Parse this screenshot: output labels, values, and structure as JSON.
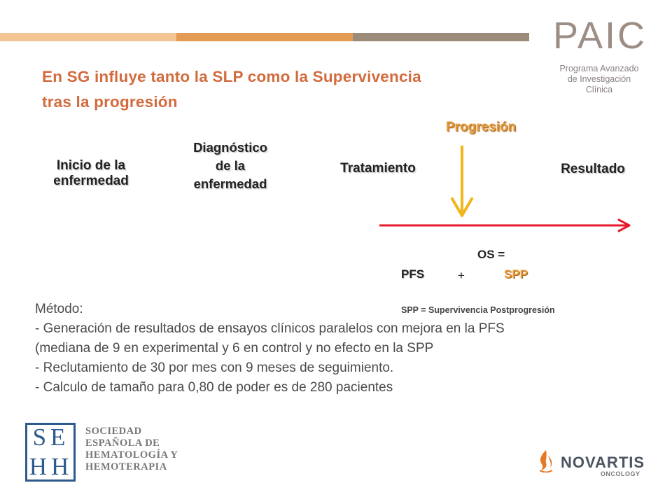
{
  "header": {
    "logo": {
      "mark": "PAIC",
      "subtitle": [
        "Programa Avanzado",
        "de Investigación",
        "Clínica"
      ]
    },
    "strip_colors": [
      "#f3c593",
      "#e49c55",
      "#9c8b78"
    ]
  },
  "title": [
    "En SG influye tanto la SLP como la Supervivencia",
    "tras la progresión"
  ],
  "timeline": {
    "stages": {
      "inicio": [
        "Inicio de la",
        "enfermedad"
      ],
      "diagnostico": [
        "Diagnóstico",
        "de la",
        "enfermedad"
      ],
      "tratamiento": "Tratamiento",
      "progresion": "Progresión",
      "resultado": "Resultado"
    },
    "arrow_color": "#e8182b",
    "progression_arrow_color": "#f2b51a"
  },
  "formula": {
    "os": "OS =",
    "pfs": "PFS",
    "plus": "+",
    "spp": "SPP",
    "spp_definition": "SPP = Supervivencia Postprogresión"
  },
  "method": {
    "lines": [
      "Método:",
      "- Generación de resultados de ensayos clínicos paralelos con mejora en la PFS",
      "(mediana de 9 en experimental y 6 en control y no efecto en la SPP",
      "- Reclutamiento de 30 por mes con 9 meses de seguimiento.",
      "- Calculo de tamaño para 0,80 de poder es de 280 pacientes"
    ]
  },
  "footer": {
    "sehh": {
      "letters": [
        "SE",
        "HH"
      ],
      "name": [
        "SOCIEDAD",
        "ESPAÑOLA DE",
        "HEMATOLOGÍA Y",
        "HEMOTERAPIA"
      ],
      "color": "#2e5a8e"
    },
    "novartis": {
      "word": "NOVARTIS",
      "sub": "ONCOLOGY",
      "flame_color": "#e87722"
    }
  }
}
